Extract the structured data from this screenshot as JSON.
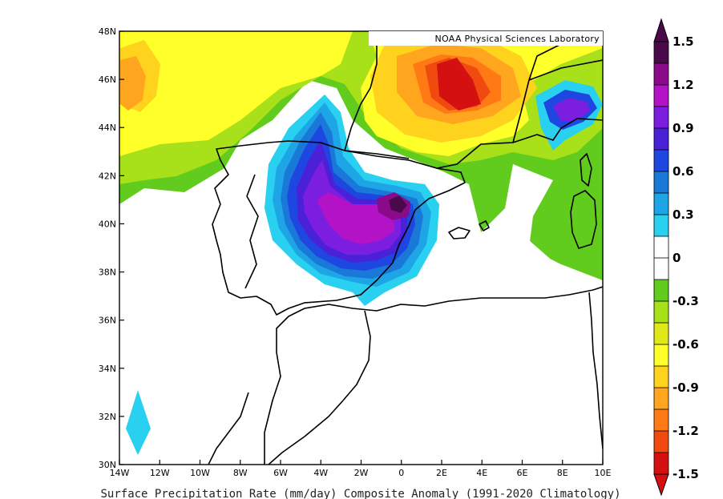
{
  "credit": "NOAA Physical Sciences Laboratory",
  "caption": "Surface Precipitation Rate (mm/day) Composite Anomaly (1991-2020 Climatology)",
  "map": {
    "lon_range": [
      -14,
      10
    ],
    "lat_range": [
      30,
      48
    ],
    "lat_ticks": [
      "30N",
      "32N",
      "34N",
      "36N",
      "38N",
      "40N",
      "42N",
      "44N",
      "46N",
      "48N"
    ],
    "lon_ticks": [
      "14W",
      "12W",
      "10W",
      "8W",
      "6W",
      "4W",
      "2W",
      "0",
      "2E",
      "4E",
      "6E",
      "8E",
      "10E"
    ]
  },
  "colorbar": {
    "labels": [
      "1.5",
      "1.2",
      "0.9",
      "0.6",
      "0.3",
      "0",
      "-0.3",
      "-0.6",
      "-0.9",
      "-1.2",
      "-1.5"
    ],
    "colors": [
      "#4a0a4a",
      "#8a0a8a",
      "#b312c7",
      "#7b1ee0",
      "#4a20d8",
      "#1e46e0",
      "#1a78d8",
      "#1ea5e6",
      "#2ad0ef",
      "#ffffff",
      "#ffffff",
      "#62cc1e",
      "#a8e01a",
      "#e0e81a",
      "#ffff2a",
      "#ffd21e",
      "#ffa61e",
      "#ff7a14",
      "#f04a10",
      "#d41010"
    ]
  }
}
